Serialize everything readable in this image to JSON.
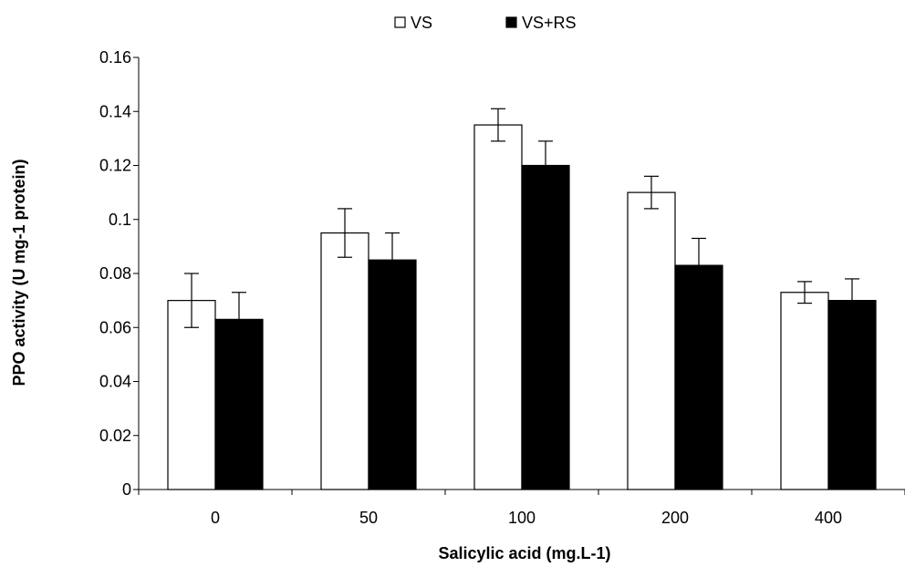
{
  "chart_data": {
    "type": "bar",
    "categories": [
      "0",
      "50",
      "100",
      "200",
      "400"
    ],
    "series": [
      {
        "name": "VS",
        "color": "#ffffff",
        "values": [
          0.07,
          0.095,
          0.135,
          0.11,
          0.073
        ],
        "errors": [
          0.01,
          0.009,
          0.006,
          0.006,
          0.004
        ]
      },
      {
        "name": "VS+RS",
        "color": "#000000",
        "values": [
          0.063,
          0.085,
          0.12,
          0.083,
          0.07
        ],
        "errors": [
          0.01,
          0.01,
          0.009,
          0.01,
          0.008
        ]
      }
    ],
    "y_ticks": [
      "0",
      "0.02",
      "0.04",
      "0.06",
      "0.08",
      "0.1",
      "0.12",
      "0.14",
      "0.16"
    ],
    "xlabel": "Salicylic acid (mg.L-1)",
    "ylabel": "PPO activity (U mg-1 protein)",
    "ylim": [
      0,
      0.16
    ],
    "grid": false,
    "legend_position": "top-center"
  }
}
